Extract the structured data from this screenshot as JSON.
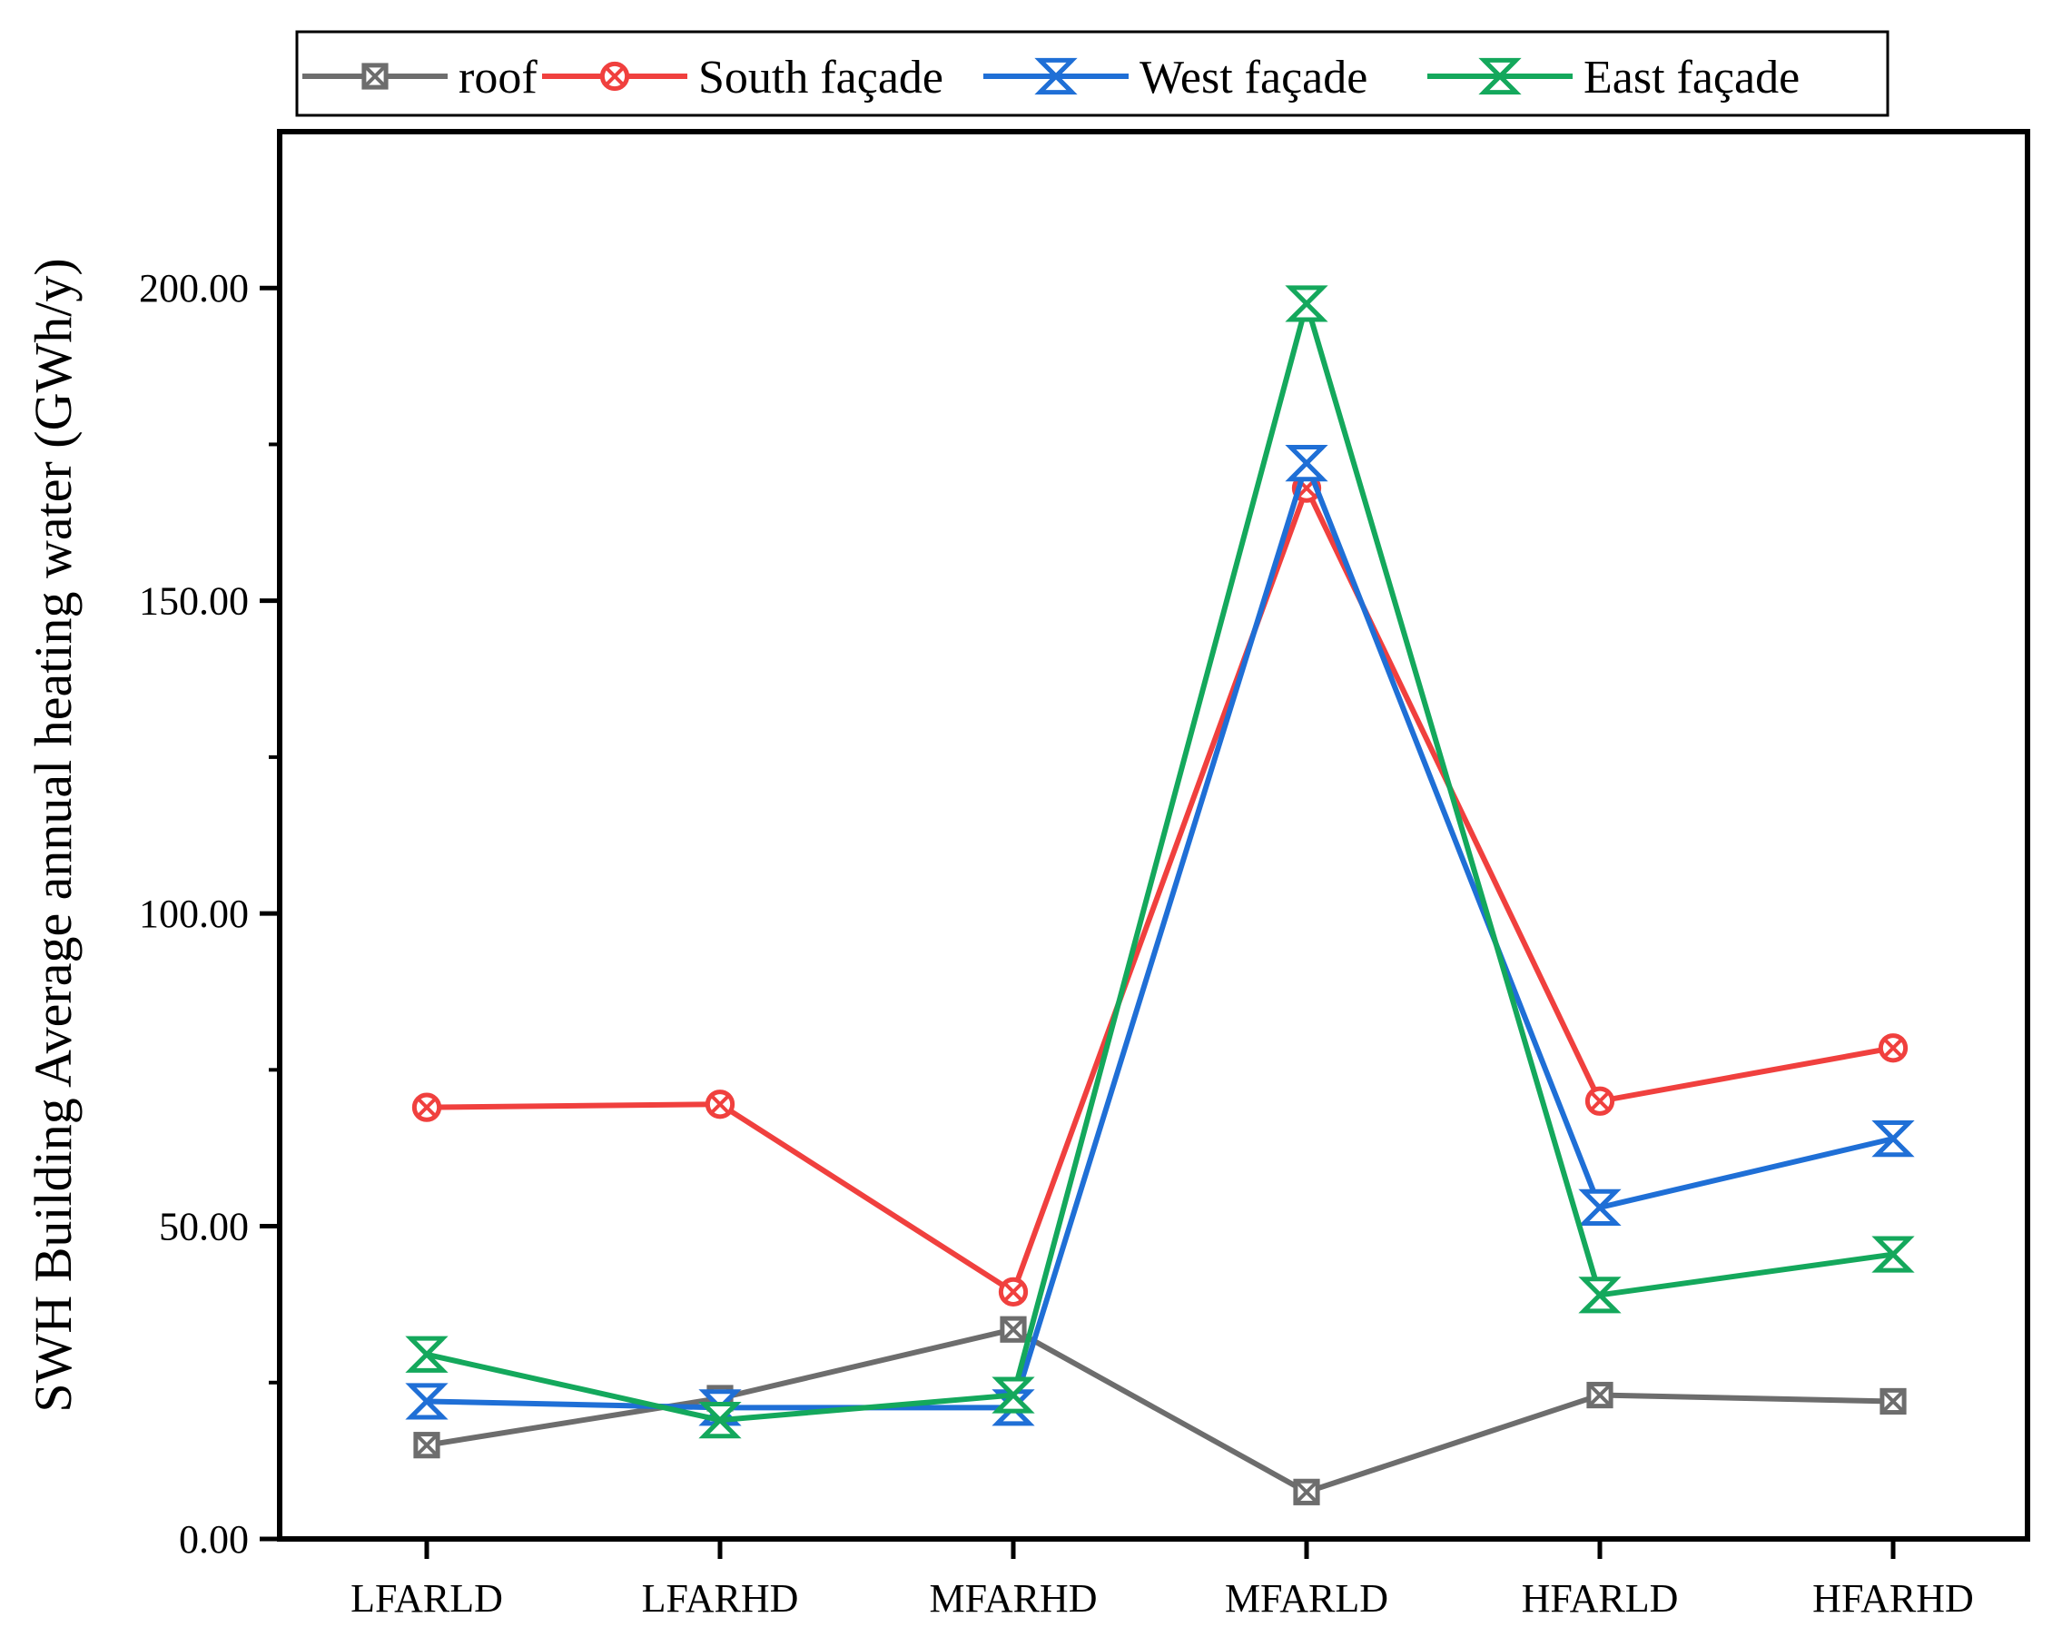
{
  "chart_data": {
    "type": "line",
    "title": "",
    "xlabel": "",
    "ylabel": "SWH Building Average annual heating water (GWh/y)",
    "categories": [
      "LFARLD",
      "LFARHD",
      "MFARHD",
      "MFARLD",
      "HFARLD",
      "HFARHD"
    ],
    "ylim": [
      0,
      225
    ],
    "yticks": [
      0,
      50,
      100,
      150,
      200
    ],
    "ytick_labels": [
      "0.00",
      "50.00",
      "100.00",
      "150.00",
      "200.00"
    ],
    "grid": false,
    "legend_position": "top",
    "series": [
      {
        "name": "roof",
        "color": "#6d6d6d",
        "marker": "square-x",
        "values": [
          15,
          22.5,
          33.5,
          7.5,
          23,
          22
        ]
      },
      {
        "name": "South façade",
        "color": "#f0403e",
        "marker": "circle-x",
        "values": [
          69,
          69.5,
          39.5,
          168,
          70,
          78.5
        ]
      },
      {
        "name": "West façade",
        "color": "#1f6fd6",
        "marker": "hourglass-x",
        "values": [
          22,
          21,
          21,
          172,
          53,
          64
        ]
      },
      {
        "name": "East façade",
        "color": "#14a85c",
        "marker": "hourglass-x",
        "values": [
          29.5,
          19,
          23,
          197.5,
          39,
          45.5
        ]
      }
    ]
  }
}
